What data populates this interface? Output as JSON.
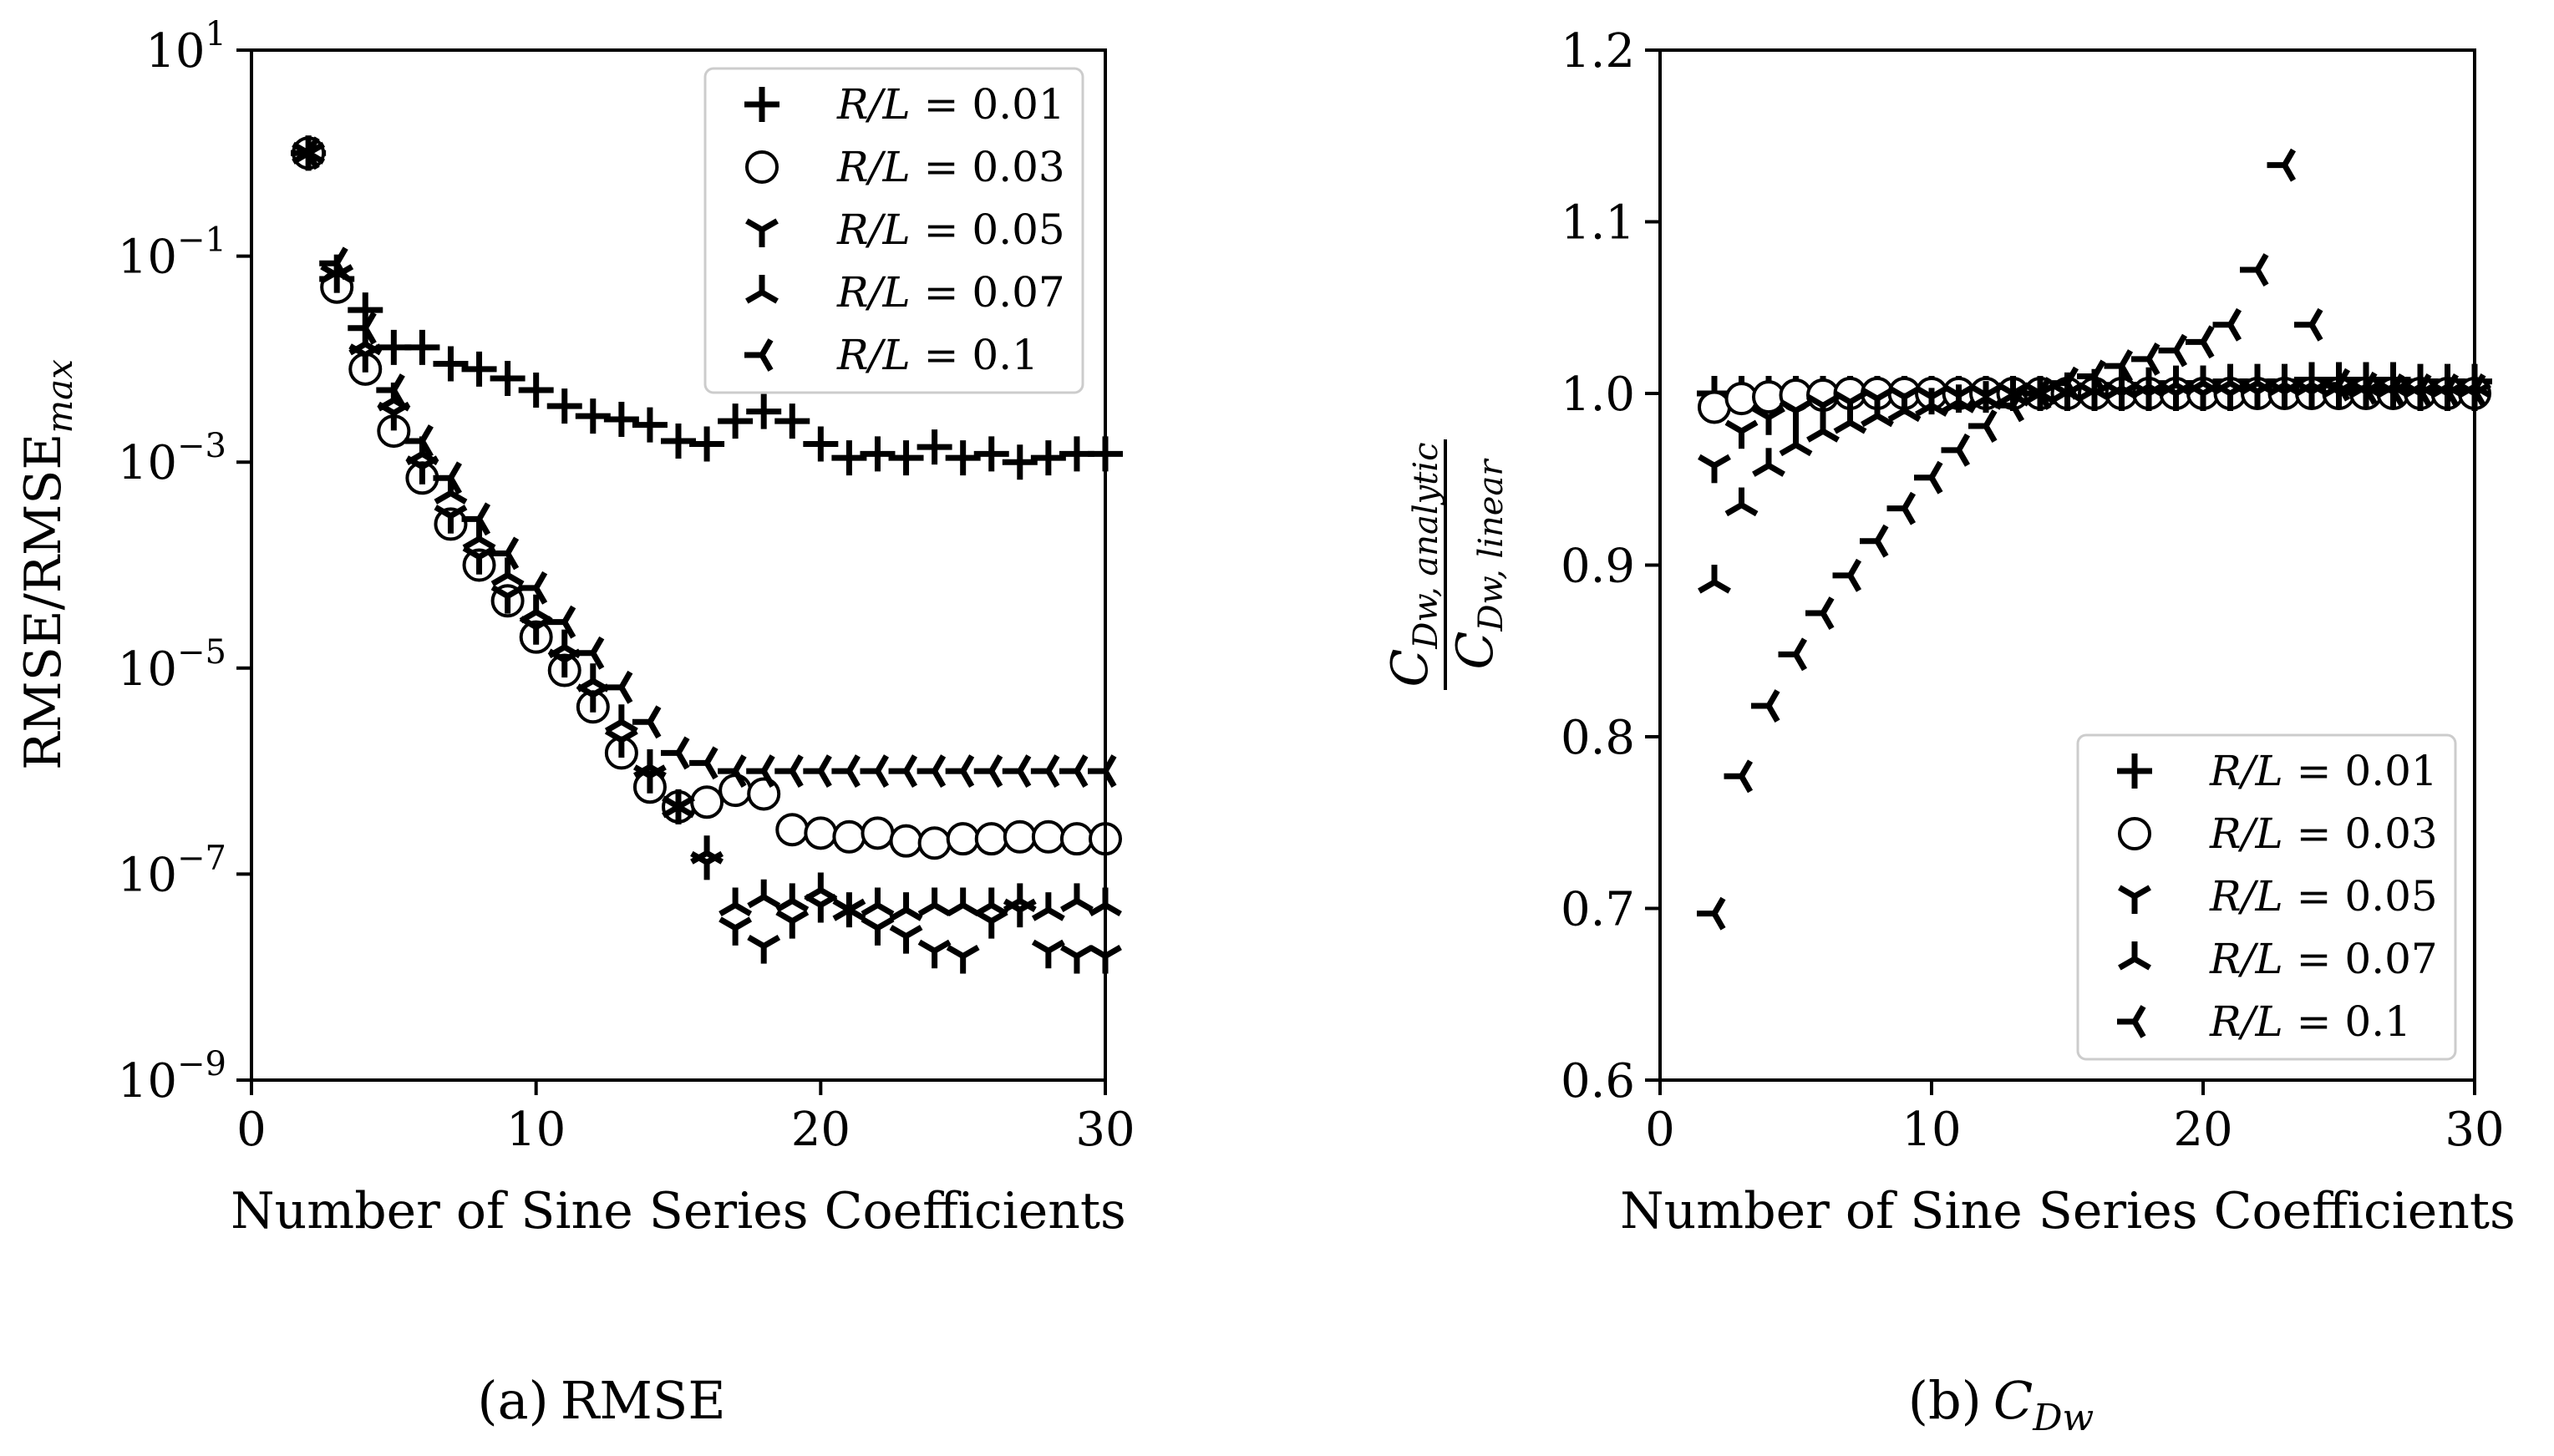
{
  "chart_data": [
    {
      "type": "scatter",
      "panel": "a",
      "caption_letter": "(a)",
      "caption_text": "RMSE",
      "xlabel": "Number of Sine Series Coefficients",
      "ylabel_main": "RMSE/RMSE",
      "ylabel_sub": "max",
      "yscale": "log",
      "xlim": [
        0,
        30
      ],
      "ylim_exp": [
        -9,
        1
      ],
      "x_ticks": [
        "0",
        "10",
        "20",
        "30"
      ],
      "y_ticks": [
        {
          "base": "10",
          "exp": "1"
        },
        {
          "base": "10",
          "exp": "−1"
        },
        {
          "base": "10",
          "exp": "−3"
        },
        {
          "base": "10",
          "exp": "−5"
        },
        {
          "base": "10",
          "exp": "−7"
        },
        {
          "base": "10",
          "exp": "−9"
        }
      ],
      "legend_position": "top-right",
      "series": [
        {
          "name": "R/L = 0.01",
          "label_var": "R/L",
          "label_val": " = 0.01",
          "marker": "plus",
          "x": [
            2,
            3,
            4,
            5,
            6,
            7,
            8,
            9,
            10,
            11,
            12,
            13,
            14,
            15,
            16,
            17,
            18,
            19,
            20,
            21,
            22,
            23,
            24,
            25,
            26,
            27,
            28,
            29,
            30
          ],
          "y": [
            1.0,
            0.06,
            0.03,
            0.013,
            0.013,
            0.009,
            0.008,
            0.0065,
            0.005,
            0.0035,
            0.0028,
            0.0026,
            0.0023,
            0.0016,
            0.0015,
            0.0025,
            0.0031,
            0.0025,
            0.0015,
            0.0011,
            0.0012,
            0.0011,
            0.0014,
            0.0011,
            0.0012,
            0.001,
            0.0011,
            0.0012,
            0.0012
          ]
        },
        {
          "name": "R/L = 0.03",
          "label_var": "R/L",
          "label_val": " = 0.03",
          "marker": "circle",
          "x": [
            2,
            3,
            4,
            5,
            6,
            7,
            8,
            9,
            10,
            11,
            12,
            13,
            14,
            15,
            16,
            17,
            18,
            19,
            20,
            21,
            22,
            23,
            24,
            25,
            26,
            27,
            28,
            29,
            30
          ],
          "y": [
            1.0,
            0.05,
            0.008,
            0.002,
            0.0007,
            0.00025,
            0.0001,
            4.5e-05,
            2e-05,
            9.5e-06,
            4.2e-06,
            1.5e-06,
            7e-07,
            4.5e-07,
            5e-07,
            6.5e-07,
            6e-07,
            2.7e-07,
            2.5e-07,
            2.3e-07,
            2.5e-07,
            2.1e-07,
            2e-07,
            2.2e-07,
            2.2e-07,
            2.3e-07,
            2.3e-07,
            2.2e-07,
            2.2e-07
          ]
        },
        {
          "name": "R/L = 0.05",
          "label_var": "R/L",
          "label_val": " = 0.05",
          "marker": "tri_down",
          "x": [
            2,
            3,
            4,
            5,
            6,
            7,
            8,
            9,
            10,
            11,
            12,
            13,
            14,
            15,
            16,
            17,
            18,
            19,
            20,
            21,
            22,
            23,
            24,
            25,
            26,
            27,
            28,
            29,
            30
          ],
          "y": [
            1.0,
            0.065,
            0.011,
            0.003,
            0.0009,
            0.0003,
            0.00012,
            5e-05,
            2.5e-05,
            1.2e-05,
            5.5e-06,
            2e-06,
            9e-07,
            4.5e-07,
            1.3e-07,
            3e-08,
            2e-08,
            3.5e-08,
            5e-08,
            4.5e-08,
            3e-08,
            2.5e-08,
            1.8e-08,
            1.6e-08,
            3.5e-08,
            4.5e-08,
            1.8e-08,
            1.6e-08,
            1.6e-08
          ]
        },
        {
          "name": "R/L = 0.07",
          "label_var": "R/L",
          "label_val": " = 0.07",
          "marker": "tri_up",
          "x": [
            2,
            3,
            4,
            5,
            6,
            7,
            8,
            9,
            10,
            11,
            12,
            13,
            14,
            15,
            16,
            17,
            18,
            19,
            20,
            21,
            22,
            23,
            24,
            25,
            26,
            27,
            28,
            29,
            30
          ],
          "y": [
            1.0,
            0.07,
            0.014,
            0.004,
            0.0012,
            0.0005,
            0.00018,
            8e-05,
            3.5e-05,
            1.6e-05,
            7.5e-06,
            3e-06,
            1.1e-06,
            4.5e-07,
            1.6e-07,
            5e-08,
            6e-08,
            5.5e-08,
            7e-08,
            4.5e-08,
            5e-08,
            4.5e-08,
            5e-08,
            5e-08,
            5e-08,
            5.5e-08,
            4.5e-08,
            5.5e-08,
            5e-08
          ]
        },
        {
          "name": "R/L = 0.1",
          "label_var": "R/L",
          "label_val": " = 0.1",
          "marker": "tri_left",
          "x": [
            2,
            3,
            4,
            5,
            6,
            7,
            8,
            9,
            10,
            11,
            12,
            13,
            14,
            15,
            16,
            17,
            18,
            19,
            20,
            21,
            22,
            23,
            24,
            25,
            26,
            27,
            28,
            29,
            30
          ],
          "y": [
            1.0,
            0.085,
            0.02,
            0.005,
            0.0016,
            0.0007,
            0.00028,
            0.00013,
            6e-05,
            2.8e-05,
            1.4e-05,
            6.5e-06,
            3e-06,
            1.5e-06,
            1.2e-06,
            1e-06,
            1e-06,
            1e-06,
            1e-06,
            1e-06,
            1e-06,
            1e-06,
            1e-06,
            1e-06,
            1e-06,
            1e-06,
            1e-06,
            1e-06,
            1e-06
          ]
        }
      ]
    },
    {
      "type": "scatter",
      "panel": "b",
      "caption_letter": "(b)",
      "caption_text": "C",
      "caption_sub": "Dw",
      "xlabel": "Number of Sine Series Coefficients",
      "ylabel_num": "C",
      "ylabel_num_sub": "Dw, analytic",
      "ylabel_den": "C",
      "ylabel_den_sub": "Dw, linear",
      "xlim": [
        0,
        30
      ],
      "ylim": [
        0.6,
        1.2
      ],
      "x_ticks": [
        "0",
        "10",
        "20",
        "30"
      ],
      "y_ticks": [
        "1.2",
        "1.1",
        "1.0",
        "0.9",
        "0.8",
        "0.7",
        "0.6"
      ],
      "legend_position": "bottom-right",
      "series": [
        {
          "name": "R/L = 0.01",
          "label_var": "R/L",
          "label_val": " = 0.01",
          "marker": "plus",
          "x": [
            2,
            3,
            4,
            5,
            6,
            7,
            8,
            9,
            10,
            11,
            12,
            13,
            14,
            15,
            16,
            17,
            18,
            19,
            20,
            21,
            22,
            23,
            24,
            25,
            26,
            27,
            28,
            29,
            30
          ],
          "y": [
            1.0,
            1.0,
            1.0,
            1.0,
            1.0,
            1.0,
            1.0,
            1.0,
            1.0,
            1.0,
            1.0,
            1.0,
            1.0,
            1.002,
            1.004,
            1.005,
            1.005,
            1.006,
            1.006,
            1.007,
            1.007,
            1.007,
            1.008,
            1.008,
            1.008,
            1.008,
            1.007,
            1.007,
            1.007
          ]
        },
        {
          "name": "R/L = 0.03",
          "label_var": "R/L",
          "label_val": " = 0.03",
          "marker": "circle",
          "x": [
            2,
            3,
            4,
            5,
            6,
            7,
            8,
            9,
            10,
            11,
            12,
            13,
            14,
            15,
            16,
            17,
            18,
            19,
            20,
            21,
            22,
            23,
            24,
            25,
            26,
            27,
            28,
            29,
            30
          ],
          "y": [
            0.992,
            0.997,
            0.998,
            0.999,
            0.999,
            1.0,
            1.0,
            1.0,
            1.0,
            1.0,
            1.0,
            1.0,
            1.0,
            1.0,
            1.0,
            1.0,
            1.0,
            1.0,
            1.0,
            1.0,
            1.0,
            1.0,
            1.0,
            1.0,
            1.0,
            1.0,
            1.0,
            1.0,
            1.0
          ]
        },
        {
          "name": "R/L = 0.05",
          "label_var": "R/L",
          "label_val": " = 0.05",
          "marker": "tri_down",
          "x": [
            2,
            3,
            4,
            5,
            6,
            7,
            8,
            9,
            10,
            11,
            12,
            13,
            14,
            15,
            16,
            17,
            18,
            19,
            20,
            21,
            22,
            23,
            24,
            25,
            26,
            27,
            28,
            29,
            30
          ],
          "y": [
            0.958,
            0.978,
            0.986,
            0.99,
            0.993,
            0.995,
            0.997,
            0.998,
            0.998,
            0.999,
            0.999,
            1.0,
            1.0,
            1.0,
            1.0,
            1.0,
            1.0,
            1.0,
            1.0,
            1.0,
            1.001,
            1.001,
            1.001,
            1.001,
            1.001,
            1.001,
            1.0,
            1.0,
            1.0
          ]
        },
        {
          "name": "R/L = 0.07",
          "label_var": "R/L",
          "label_val": " = 0.07",
          "marker": "tri_up",
          "x": [
            2,
            3,
            4,
            5,
            6,
            7,
            8,
            9,
            10,
            11,
            12,
            13,
            14,
            15,
            16,
            17,
            18,
            19,
            20,
            21,
            22,
            23,
            24,
            25,
            26,
            27,
            28,
            29,
            30
          ],
          "y": [
            0.89,
            0.935,
            0.958,
            0.97,
            0.978,
            0.983,
            0.987,
            0.99,
            0.993,
            0.995,
            0.997,
            0.999,
            1.0,
            1.001,
            1.002,
            1.003,
            1.004,
            1.005,
            1.006,
            1.006,
            1.006,
            1.005,
            1.005,
            1.004,
            1.004,
            1.004,
            1.004,
            1.004,
            1.004
          ]
        },
        {
          "name": "R/L = 0.1",
          "label_var": "R/L",
          "label_val": " = 0.1",
          "marker": "tri_left",
          "x": [
            2,
            3,
            4,
            5,
            6,
            7,
            8,
            9,
            10,
            11,
            12,
            13,
            14,
            15,
            16,
            17,
            18,
            19,
            20,
            21,
            22,
            23,
            24,
            25,
            26,
            27,
            28,
            29,
            30
          ],
          "y": [
            0.697,
            0.777,
            0.818,
            0.848,
            0.872,
            0.894,
            0.914,
            0.933,
            0.951,
            0.967,
            0.981,
            0.993,
            1.0,
            1.006,
            1.01,
            1.016,
            1.02,
            1.025,
            1.03,
            1.04,
            1.072,
            1.133,
            1.04,
            1.005,
            1.003,
            1.002,
            1.002,
            1.002,
            1.002
          ]
        }
      ]
    }
  ]
}
